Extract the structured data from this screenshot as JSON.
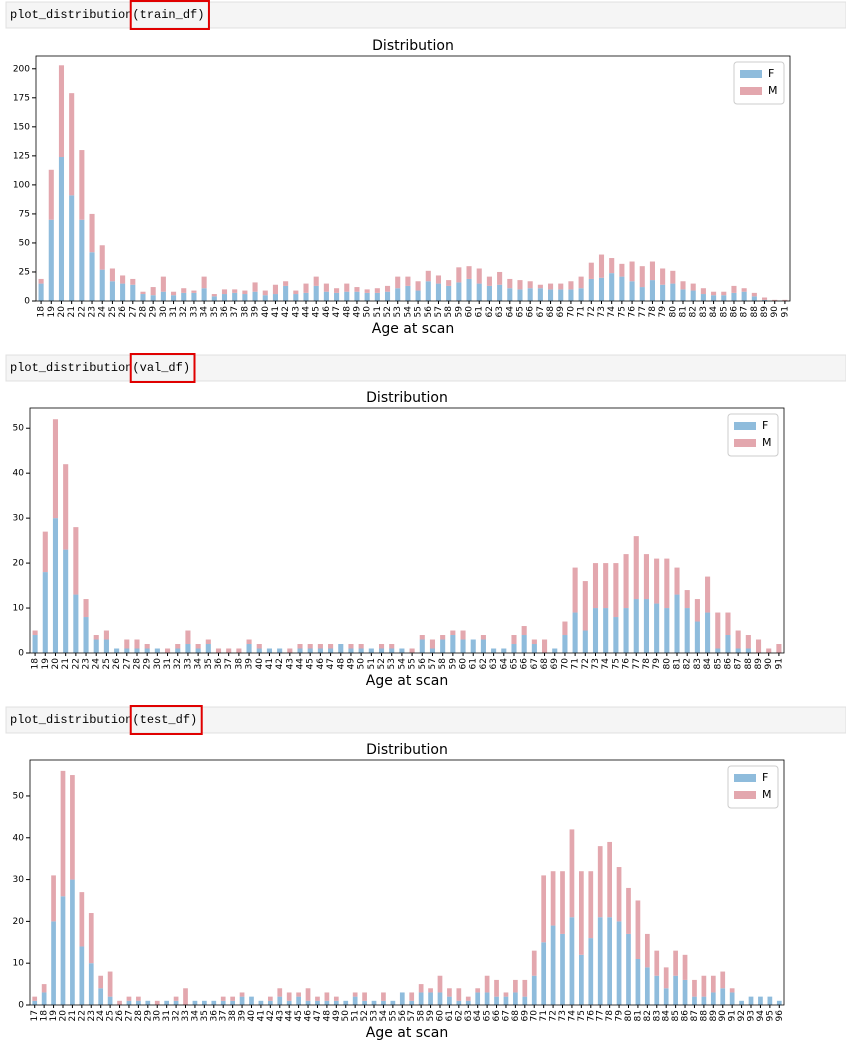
{
  "cells": [
    {
      "code": "plot_distribution(train_df)"
    },
    {
      "code": "plot_distribution(val_df)"
    },
    {
      "code": "plot_distribution(test_df)"
    }
  ],
  "chart_data": [
    {
      "type": "bar",
      "stacked": true,
      "title": "Distribution",
      "xlabel": "Age at scan",
      "categories": [
        18,
        19,
        20,
        21,
        22,
        23,
        24,
        25,
        26,
        27,
        28,
        29,
        30,
        31,
        32,
        33,
        34,
        35,
        36,
        37,
        38,
        39,
        40,
        41,
        42,
        43,
        44,
        45,
        46,
        47,
        48,
        49,
        50,
        51,
        52,
        53,
        54,
        55,
        56,
        57,
        58,
        59,
        60,
        61,
        62,
        63,
        64,
        65,
        66,
        67,
        68,
        69,
        70,
        71,
        72,
        73,
        74,
        75,
        76,
        77,
        78,
        79,
        80,
        81,
        82,
        83,
        84,
        85,
        86,
        87,
        88,
        89,
        90,
        91
      ],
      "series": [
        {
          "name": "F",
          "color": "#8fbcdc",
          "values": [
            15,
            70,
            124,
            91,
            70,
            42,
            27,
            17,
            15,
            14,
            6,
            5,
            8,
            5,
            7,
            7,
            11,
            4,
            6,
            7,
            6,
            8,
            5,
            6,
            13,
            6,
            7,
            13,
            8,
            7,
            8,
            8,
            7,
            7,
            8,
            11,
            13,
            9,
            17,
            15,
            13,
            16,
            19,
            15,
            13,
            14,
            11,
            10,
            11,
            11,
            10,
            10,
            10,
            11,
            19,
            20,
            24,
            21,
            17,
            12,
            18,
            14,
            15,
            10,
            9,
            6,
            5,
            5,
            7,
            8,
            4,
            1,
            0,
            0
          ]
        },
        {
          "name": "M",
          "color": "#e3a7ae",
          "values": [
            4,
            43,
            79,
            88,
            60,
            33,
            21,
            11,
            7,
            5,
            2,
            7,
            13,
            3,
            4,
            2,
            10,
            2,
            4,
            3,
            3,
            8,
            4,
            8,
            4,
            3,
            8,
            8,
            7,
            4,
            7,
            4,
            3,
            4,
            5,
            10,
            8,
            8,
            9,
            7,
            5,
            13,
            11,
            13,
            8,
            11,
            8,
            8,
            6,
            3,
            5,
            5,
            7,
            10,
            14,
            20,
            13,
            11,
            17,
            18,
            16,
            14,
            11,
            7,
            6,
            5,
            3,
            3,
            6,
            3,
            3,
            2,
            1,
            1
          ]
        }
      ],
      "ylim": [
        0,
        211
      ],
      "yticks": [
        0,
        25,
        50,
        75,
        100,
        125,
        150,
        175,
        200
      ],
      "legend": "upper right"
    },
    {
      "type": "bar",
      "stacked": true,
      "title": "Distribution",
      "xlabel": "Age at scan",
      "categories": [
        18,
        19,
        20,
        21,
        22,
        23,
        24,
        25,
        26,
        27,
        28,
        29,
        30,
        31,
        32,
        33,
        34,
        35,
        36,
        37,
        38,
        39,
        40,
        41,
        42,
        43,
        44,
        45,
        46,
        47,
        48,
        49,
        50,
        51,
        52,
        53,
        54,
        55,
        56,
        57,
        58,
        59,
        60,
        61,
        62,
        63,
        64,
        65,
        66,
        67,
        68,
        69,
        70,
        71,
        72,
        73,
        74,
        75,
        76,
        77,
        78,
        79,
        80,
        81,
        82,
        83,
        84,
        85,
        86,
        87,
        88,
        89,
        90,
        91
      ],
      "series": [
        {
          "name": "F",
          "color": "#8fbcdc",
          "values": [
            4,
            18,
            30,
            23,
            13,
            8,
            3,
            3,
            1,
            1,
            1,
            1,
            1,
            0,
            1,
            2,
            1,
            2,
            0,
            0,
            0,
            2,
            1,
            1,
            1,
            0,
            1,
            1,
            1,
            1,
            2,
            1,
            1,
            1,
            1,
            1,
            1,
            0,
            3,
            1,
            3,
            4,
            3,
            3,
            3,
            1,
            1,
            2,
            4,
            2,
            0,
            1,
            4,
            9,
            5,
            10,
            10,
            8,
            10,
            12,
            12,
            11,
            10,
            13,
            10,
            7,
            9,
            1,
            4,
            1,
            1,
            0,
            0,
            0
          ]
        },
        {
          "name": "M",
          "color": "#e3a7ae",
          "values": [
            1,
            9,
            22,
            19,
            15,
            4,
            1,
            2,
            0,
            2,
            2,
            1,
            0,
            1,
            1,
            3,
            1,
            1,
            1,
            1,
            1,
            1,
            1,
            0,
            0,
            1,
            1,
            1,
            1,
            1,
            0,
            1,
            1,
            0,
            1,
            1,
            0,
            1,
            1,
            2,
            1,
            1,
            2,
            0,
            1,
            0,
            0,
            2,
            2,
            1,
            3,
            0,
            3,
            10,
            11,
            10,
            10,
            12,
            12,
            14,
            10,
            10,
            11,
            6,
            4,
            5,
            8,
            8,
            5,
            4,
            3,
            3,
            1,
            2
          ]
        }
      ],
      "ylim": [
        0,
        54.5
      ],
      "yticks": [
        0,
        10,
        20,
        30,
        40,
        50
      ],
      "legend": "upper right"
    },
    {
      "type": "bar",
      "stacked": true,
      "title": "Distribution",
      "xlabel": "Age at scan",
      "categories": [
        17,
        18,
        19,
        20,
        21,
        22,
        23,
        24,
        25,
        26,
        27,
        28,
        29,
        30,
        31,
        32,
        33,
        34,
        35,
        36,
        37,
        38,
        39,
        40,
        41,
        42,
        43,
        44,
        45,
        46,
        47,
        48,
        49,
        50,
        51,
        52,
        53,
        54,
        55,
        56,
        57,
        58,
        59,
        60,
        61,
        62,
        63,
        64,
        65,
        66,
        67,
        68,
        69,
        70,
        71,
        72,
        73,
        74,
        75,
        76,
        77,
        78,
        79,
        80,
        81,
        82,
        83,
        84,
        85,
        86,
        87,
        88,
        89,
        90,
        91,
        92,
        93,
        94,
        95,
        96
      ],
      "series": [
        {
          "name": "F",
          "color": "#8fbcdc",
          "values": [
            1,
            3,
            20,
            26,
            30,
            14,
            10,
            4,
            2,
            0,
            1,
            1,
            1,
            0,
            1,
            1,
            0,
            1,
            1,
            1,
            1,
            1,
            2,
            2,
            1,
            1,
            2,
            1,
            2,
            1,
            1,
            1,
            1,
            1,
            2,
            1,
            1,
            1,
            1,
            3,
            1,
            3,
            3,
            3,
            2,
            1,
            1,
            3,
            3,
            2,
            2,
            3,
            2,
            7,
            15,
            19,
            17,
            21,
            12,
            16,
            21,
            21,
            20,
            17,
            11,
            9,
            7,
            4,
            7,
            6,
            2,
            2,
            3,
            4,
            3,
            1,
            2,
            2,
            2,
            1
          ]
        },
        {
          "name": "M",
          "color": "#e3a7ae",
          "values": [
            1,
            2,
            11,
            30,
            25,
            13,
            12,
            3,
            6,
            1,
            1,
            1,
            0,
            1,
            0,
            1,
            4,
            0,
            0,
            0,
            1,
            1,
            1,
            0,
            0,
            1,
            2,
            2,
            1,
            3,
            1,
            2,
            1,
            0,
            1,
            2,
            0,
            2,
            0,
            0,
            2,
            2,
            1,
            4,
            2,
            3,
            1,
            1,
            4,
            4,
            1,
            3,
            4,
            6,
            16,
            13,
            15,
            21,
            20,
            16,
            17,
            18,
            13,
            11,
            14,
            8,
            6,
            5,
            6,
            6,
            4,
            5,
            4,
            4,
            1,
            0,
            0,
            0,
            0,
            0
          ]
        }
      ],
      "ylim": [
        0,
        58.6
      ],
      "yticks": [
        0,
        10,
        20,
        30,
        40,
        50
      ],
      "legend": "upper right"
    }
  ]
}
